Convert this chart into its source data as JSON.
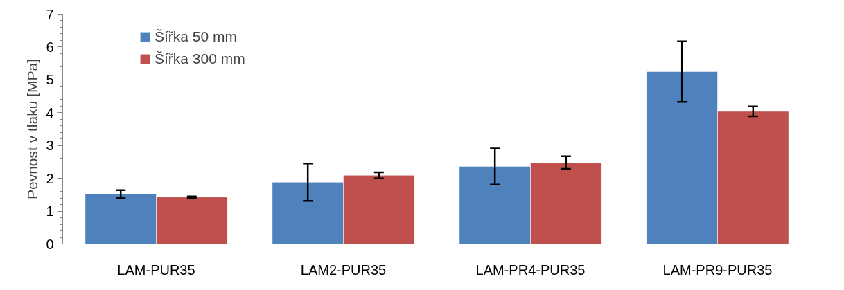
{
  "chart_data": {
    "type": "bar",
    "ylabel": "Pevnost v tlaku [MPa]",
    "categories": [
      "LAM-PUR35",
      "LAM2-PUR35",
      "LAM-PR4-PUR35",
      "LAM-PR9-PUR35"
    ],
    "series": [
      {
        "name": "Šířka 50 mm",
        "color": "#4f81bd",
        "values": [
          1.52,
          1.88,
          2.36,
          5.25
        ],
        "errors": [
          0.12,
          0.57,
          0.55,
          0.92
        ]
      },
      {
        "name": "Šířka 300 mm",
        "color": "#c0504d",
        "values": [
          1.43,
          2.09,
          2.48,
          4.04
        ],
        "errors": [
          0.02,
          0.09,
          0.19,
          0.15
        ]
      }
    ],
    "ylim": [
      0,
      7
    ],
    "yticks": [
      0,
      1,
      2,
      3,
      4,
      5,
      6,
      7
    ],
    "grid": false,
    "legend": "top left"
  }
}
